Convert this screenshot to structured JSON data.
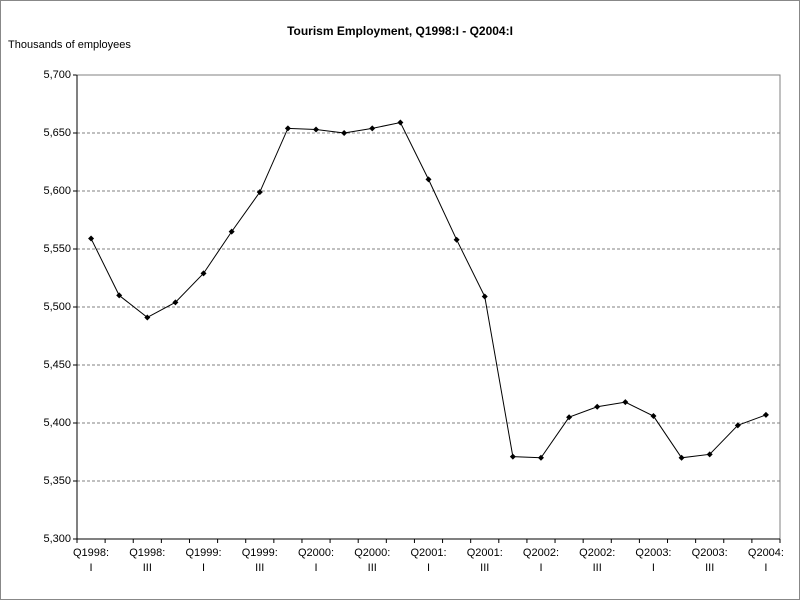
{
  "chart_data": {
    "type": "line",
    "title": "Tourism Employment, Q1998:I - Q2004:I",
    "y_label": "Thousands of employees",
    "categories": [
      "Q1998:\nI",
      null,
      "Q1998:\nIII",
      null,
      "Q1999:\nI",
      null,
      "Q1999:\nIII",
      null,
      "Q2000:\nI",
      null,
      "Q2000:\nIII",
      null,
      "Q2001:\nI",
      null,
      "Q2001:\nIII",
      null,
      "Q2002:\nI",
      null,
      "Q2002:\nIII",
      null,
      "Q2003:\nI",
      null,
      "Q2003:\nIII",
      null,
      "Q2004:\nI"
    ],
    "values": [
      5559,
      5510,
      5491,
      5504,
      5529,
      5565,
      5599,
      5654,
      5653,
      5650,
      5654,
      5659,
      5610,
      5558,
      5509,
      5371,
      5370,
      5405,
      5414,
      5418,
      5406,
      5370,
      5373,
      5398,
      5407
    ],
    "color": "#000000",
    "ylim": [
      5300,
      5700
    ],
    "yticks": [
      {
        "value": 5300,
        "label": "5,300"
      },
      {
        "value": 5350,
        "label": "5,350"
      },
      {
        "value": 5400,
        "label": "5,400"
      },
      {
        "value": 5450,
        "label": "5,450"
      },
      {
        "value": 5500,
        "label": "5,500"
      },
      {
        "value": 5550,
        "label": "5,550"
      },
      {
        "value": 5600,
        "label": "5,600"
      },
      {
        "value": 5650,
        "label": "5,650"
      },
      {
        "value": 5700,
        "label": "5,700"
      }
    ],
    "grid": true
  }
}
